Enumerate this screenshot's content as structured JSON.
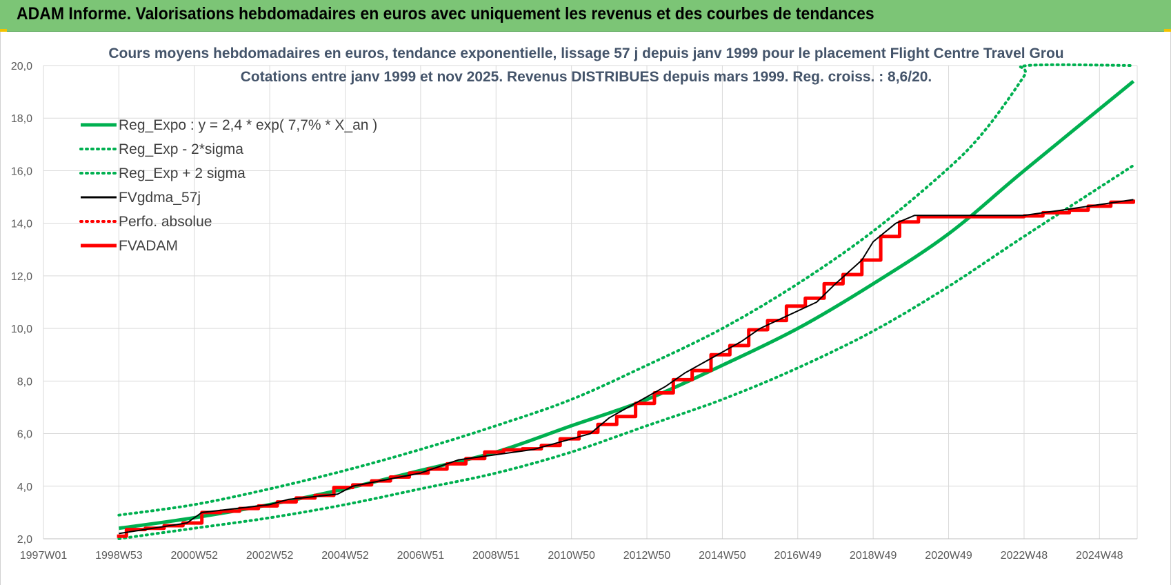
{
  "header": {
    "title": "ADAM Informe. Valorisations hebdomadaires en euros avec uniquement les revenus et des courbes de tendances"
  },
  "colors": {
    "banner": "#7cc576",
    "trend": "#00b050",
    "sigma": "#00b050",
    "fvgdma": "#000000",
    "perfo": "#ff0000",
    "fvadam": "#ff0000",
    "grid": "#d9d9d9"
  },
  "chart_data": {
    "type": "line",
    "title_line1": "Cours moyens hebdomadaires en euros, tendance exponentielle, lissage 57 j depuis janv 1999  pour le placement Flight Centre Travel Grou",
    "title_line2": "Cotations entre janv 1999 et nov 2025. Revenus DISTRIBUES depuis mars 1999.  Reg. croiss. : 8,6/20.",
    "xlabel": "",
    "ylabel": "",
    "ylim": [
      2.0,
      20.0
    ],
    "y_ticks": [
      "2,0",
      "4,0",
      "6,0",
      "8,0",
      "10,0",
      "12,0",
      "14,0",
      "16,0",
      "18,0",
      "20,0"
    ],
    "x_ticks": [
      "1997W01",
      "1998W53",
      "2000W52",
      "2002W52",
      "2004W52",
      "2006W51",
      "2008W51",
      "2010W50",
      "2012W50",
      "2014W50",
      "2016W49",
      "2018W49",
      "2020W49",
      "2022W48",
      "2024W48"
    ],
    "xlim": [
      1997.0,
      2026.0
    ],
    "legend_position": "top-left",
    "grid": true,
    "series": [
      {
        "name": "Reg_Expo : y = 2,4 * exp( 7,7% *  X_an )",
        "style": "solid-thick",
        "x": [
          1999.0,
          2001.0,
          2003.0,
          2005.0,
          2007.0,
          2009.0,
          2011.0,
          2013.0,
          2015.0,
          2017.0,
          2019.0,
          2021.0,
          2023.0,
          2025.9
        ],
        "y": [
          2.4,
          2.8,
          3.3,
          3.9,
          4.6,
          5.3,
          6.3,
          7.3,
          8.6,
          10.0,
          11.7,
          13.6,
          16.0,
          19.4
        ]
      },
      {
        "name": "Reg_Exp - 2*sigma",
        "style": "dotted",
        "x": [
          1999.0,
          2001.0,
          2003.0,
          2005.0,
          2007.0,
          2009.0,
          2011.0,
          2013.0,
          2015.0,
          2017.0,
          2019.0,
          2021.0,
          2023.0,
          2025.9
        ],
        "y": [
          2.0,
          2.4,
          2.8,
          3.3,
          3.9,
          4.5,
          5.3,
          6.3,
          7.3,
          8.5,
          9.9,
          11.6,
          13.5,
          16.2
        ]
      },
      {
        "name": "Reg_Exp + 2 sigma",
        "style": "dotted",
        "x": [
          1999.0,
          2001.0,
          2003.0,
          2005.0,
          2007.0,
          2009.0,
          2011.0,
          2013.0,
          2015.0,
          2017.0,
          2019.0,
          2021.0,
          2022.0,
          2023.0,
          2023.1,
          2025.9
        ],
        "y": [
          2.9,
          3.3,
          3.9,
          4.6,
          5.4,
          6.3,
          7.3,
          8.6,
          10.0,
          11.7,
          13.7,
          16.1,
          17.6,
          19.6,
          20.0,
          20.0
        ]
      },
      {
        "name": "FVgdma_57j",
        "style": "solid-thin",
        "x": [
          1999.0,
          2000.8,
          2001.2,
          2003.0,
          2003.5,
          2004.8,
          2005.2,
          2007.0,
          2008.0,
          2010.0,
          2011.5,
          2012.0,
          2013.5,
          2014.0,
          2015.5,
          2016.0,
          2017.5,
          2018.0,
          2018.7,
          2019.0,
          2019.6,
          2020.1,
          2023.0,
          2024.0,
          2025.9
        ],
        "y": [
          2.2,
          2.6,
          3.0,
          3.3,
          3.5,
          3.7,
          4.0,
          4.5,
          5.0,
          5.4,
          6.0,
          6.6,
          7.8,
          8.3,
          9.5,
          10.0,
          11.0,
          11.7,
          12.6,
          13.3,
          14.0,
          14.3,
          14.3,
          14.5,
          14.9
        ]
      },
      {
        "name": "Perfo. absolue",
        "style": "dotted",
        "x": [],
        "y": []
      },
      {
        "name": "FVADAM",
        "style": "step-thick",
        "x": [
          1998.95,
          1999.2,
          1999.7,
          2000.2,
          2000.7,
          2001.2,
          2001.7,
          2002.2,
          2002.7,
          2003.2,
          2003.7,
          2004.2,
          2004.7,
          2005.2,
          2005.7,
          2006.2,
          2006.7,
          2007.2,
          2007.7,
          2008.2,
          2008.7,
          2009.2,
          2009.7,
          2010.2,
          2010.7,
          2011.2,
          2011.7,
          2012.2,
          2012.7,
          2013.2,
          2013.7,
          2014.2,
          2014.7,
          2015.2,
          2015.7,
          2016.2,
          2016.7,
          2017.2,
          2017.7,
          2018.2,
          2018.7,
          2019.2,
          2019.7,
          2020.2,
          2023.0,
          2023.5,
          2024.2,
          2024.7,
          2025.3,
          2025.9
        ],
        "y": [
          2.1,
          2.35,
          2.4,
          2.5,
          2.6,
          3.0,
          3.05,
          3.15,
          3.25,
          3.4,
          3.55,
          3.65,
          3.95,
          4.05,
          4.2,
          4.35,
          4.5,
          4.65,
          4.85,
          5.05,
          5.3,
          5.38,
          5.42,
          5.55,
          5.8,
          6.05,
          6.35,
          6.65,
          7.15,
          7.55,
          8.05,
          8.4,
          9.0,
          9.35,
          9.95,
          10.3,
          10.85,
          11.15,
          11.7,
          12.05,
          12.6,
          13.5,
          14.05,
          14.25,
          14.28,
          14.4,
          14.5,
          14.65,
          14.8,
          14.9
        ]
      }
    ]
  }
}
